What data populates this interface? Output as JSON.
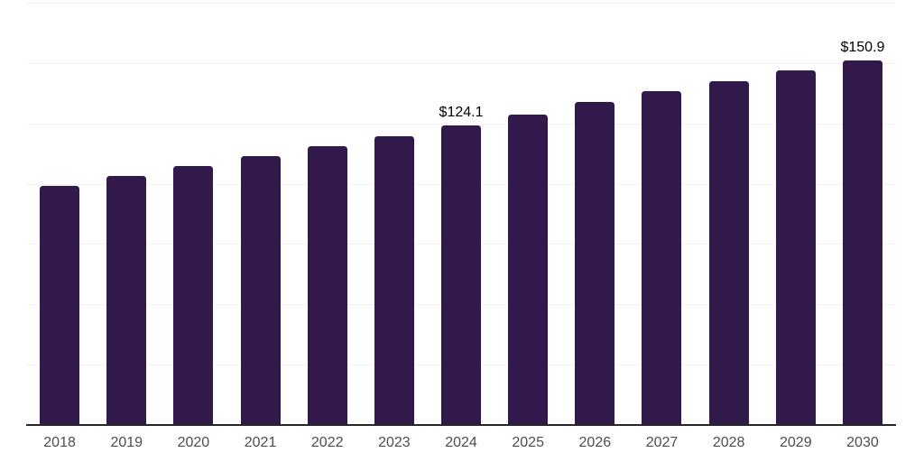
{
  "chart_data": {
    "type": "bar",
    "title": "",
    "xlabel": "",
    "ylabel": "",
    "categories": [
      "2018",
      "2019",
      "2020",
      "2021",
      "2022",
      "2023",
      "2024",
      "2025",
      "2026",
      "2027",
      "2028",
      "2029",
      "2030"
    ],
    "values": [
      99.2,
      103.1,
      107.4,
      111.4,
      115.5,
      119.6,
      124.1,
      128.8,
      133.7,
      138.2,
      142.6,
      147.0,
      150.9
    ],
    "data_labels": {
      "2024": "$124.1",
      "2030": "$150.9"
    },
    "value_prefix": "$",
    "ylim": [
      0,
      175
    ],
    "gridline_step": 25,
    "grid": true,
    "legend": "none",
    "y_axis_labels_visible": false,
    "colors": {
      "bar": "#32194B",
      "gridline": "#F1F1F1",
      "axis_line": "#262626",
      "tick_label": "#4D4D4D",
      "data_label": "#000000",
      "background": "#FFFFFF"
    }
  }
}
